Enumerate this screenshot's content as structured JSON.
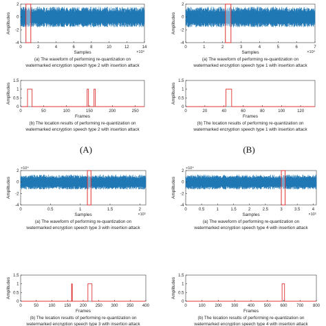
{
  "panel_labels": [
    "(A)",
    "(B)"
  ],
  "colors": {
    "waveform": "#1f77b4",
    "marker": "#e03030",
    "axis": "#333333"
  },
  "chart_data": [
    {
      "type": "area",
      "group": "A",
      "ylabel": "Amplitudes",
      "xlabel": "Samples",
      "x_exponent": "×10⁴",
      "y_exponent": "",
      "xlim": [
        0,
        14
      ],
      "ylim": [
        -4,
        2
      ],
      "xticks": [
        0,
        2,
        4,
        6,
        8,
        10,
        12,
        14
      ],
      "yticks": [
        -4,
        -2,
        0,
        2
      ],
      "amplitude": 1.6,
      "highlight": [
        0.6,
        1.15
      ],
      "caption": [
        "(a) The waveform of performing re-quantization on",
        "watermarked encryption speech type 2 with insertion attack"
      ]
    },
    {
      "type": "line",
      "group": "A",
      "ylabel": "Amplitudes",
      "xlabel": "Frames",
      "xlim": [
        0,
        270
      ],
      "ylim": [
        0,
        1.5
      ],
      "xticks": [
        0,
        50,
        100,
        150,
        200,
        250
      ],
      "yticks": [
        0,
        0.5,
        1,
        1.5
      ],
      "pulses": [
        [
          15,
          25
        ],
        [
          145,
          148
        ],
        [
          160,
          163
        ]
      ],
      "caption": [
        "(b) The location results of performing re-quantization on",
        "watermarked encryption speech type 2 with insertion attack"
      ]
    },
    {
      "type": "area",
      "group": "B",
      "ylabel": "Amplitudes",
      "xlabel": "Samples",
      "x_exponent": "×10⁴",
      "y_exponent": "",
      "xlim": [
        0,
        7
      ],
      "ylim": [
        -4,
        2
      ],
      "xticks": [
        0,
        1,
        2,
        3,
        4,
        5,
        6,
        7
      ],
      "yticks": [
        -4,
        -2,
        0,
        2
      ],
      "amplitude": 1.6,
      "highlight": [
        2.15,
        2.45
      ],
      "caption": [
        "(a) The waveform of performing re-quantization on",
        "watermarked encryption speech type 1 with insertion attack"
      ]
    },
    {
      "type": "line",
      "group": "B",
      "ylabel": "Amplitudes",
      "xlabel": "Frames",
      "xlim": [
        0,
        135
      ],
      "ylim": [
        0,
        1.5
      ],
      "xticks": [
        0,
        20,
        40,
        60,
        80,
        100,
        120
      ],
      "yticks": [
        0,
        0.5,
        1,
        1.5
      ],
      "pulses": [
        [
          42,
          48
        ]
      ],
      "caption": [
        "(b) The location results of performing re-quantization on",
        "watermarked encryption speech type 1 with insertion attack"
      ]
    },
    {
      "type": "area",
      "group": "C",
      "ylabel": "Amplitudes",
      "xlabel": "Samples",
      "x_exponent": "×10⁵",
      "y_exponent": "×10⁴",
      "xlim": [
        0,
        2.1
      ],
      "ylim": [
        -4,
        2
      ],
      "xticks": [
        0,
        0.5,
        1,
        1.5,
        2
      ],
      "yticks": [
        -4,
        -2,
        0,
        2
      ],
      "amplitude": 1.3,
      "highlight": [
        1.12,
        1.18
      ],
      "caption": [
        "(a) The waveform of performing re-quantization on",
        "watermarked encryption speech type 3 with insertion attack"
      ]
    },
    {
      "type": "line",
      "group": "C",
      "ylabel": "Amplitudes",
      "xlabel": "Frames",
      "xlim": [
        0,
        400
      ],
      "ylim": [
        0,
        1.5
      ],
      "xticks": [
        0,
        50,
        100,
        150,
        200,
        250,
        300,
        350,
        400
      ],
      "yticks": [
        0,
        0.5,
        1,
        1.5
      ],
      "pulses": [
        [
          163,
          165
        ],
        [
          215,
          228
        ]
      ],
      "caption": [
        "(b) The location results of performing re-quantization on",
        "watermarked encryption speech type 3 with insertion attack"
      ]
    },
    {
      "type": "area",
      "group": "D",
      "ylabel": "Amplitudes",
      "xlabel": "Samples",
      "x_exponent": "×10⁵",
      "y_exponent": "×10⁴",
      "xlim": [
        0,
        4.1
      ],
      "ylim": [
        -4,
        2
      ],
      "xticks": [
        0,
        0.5,
        1,
        1.5,
        2,
        2.5,
        3,
        3.5,
        4
      ],
      "yticks": [
        -4,
        -2,
        0,
        2
      ],
      "amplitude": 1.3,
      "highlight": [
        3.0,
        3.12
      ],
      "caption": [
        "(a) The waveform of performing re-quantization on",
        "watermarked encryption speech type 4 with insertion attack"
      ]
    },
    {
      "type": "line",
      "group": "D",
      "ylabel": "Amplitudes",
      "xlabel": "Frames",
      "xlim": [
        0,
        800
      ],
      "ylim": [
        0,
        1.5
      ],
      "xticks": [
        0,
        100,
        200,
        300,
        400,
        500,
        600,
        700,
        800
      ],
      "yticks": [
        0,
        0.5,
        1,
        1.5
      ],
      "pulses": [
        [
          590,
          605
        ]
      ],
      "caption": [
        "(b) The location results of performing re-quantization on",
        "watermarked encryption speech type 4 with insertion attack"
      ]
    }
  ]
}
